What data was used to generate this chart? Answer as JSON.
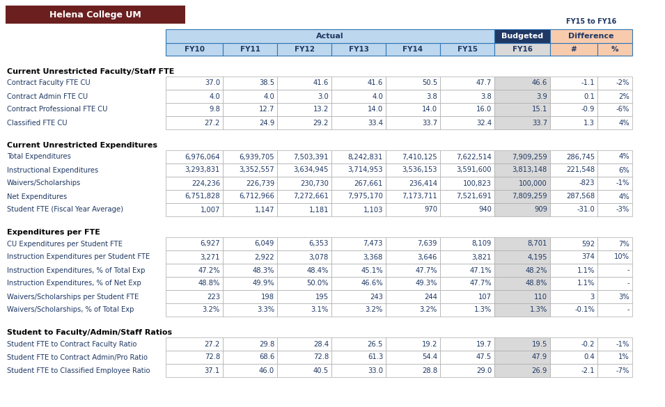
{
  "title": "Helena College UM",
  "title_bg": "#6B1F1F",
  "title_color": "#FFFFFF",
  "fy15to16_color": "#1F3864",
  "header_actual_bg": "#BDD7EE",
  "header_budgeted_bg": "#1F3864",
  "header_diff_bg": "#F8CBAD",
  "col_fy16_bg": "#D9D9D9",
  "data_text_color": "#1F3864",
  "border_color": "#2E75B6",
  "sections": [
    {
      "title": "Current Unrestricted Faculty/Staff FTE",
      "rows": [
        {
          "label": "Contract Faculty FTE CU",
          "values": [
            "37.0",
            "38.5",
            "41.6",
            "41.6",
            "50.5",
            "47.7",
            "46.6",
            "-1.1",
            "-2%"
          ]
        },
        {
          "label": "Contract Admin FTE CU",
          "values": [
            "4.0",
            "4.0",
            "3.0",
            "4.0",
            "3.8",
            "3.8",
            "3.9",
            "0.1",
            "2%"
          ]
        },
        {
          "label": "Contract Professional FTE CU",
          "values": [
            "9.8",
            "12.7",
            "13.2",
            "14.0",
            "14.0",
            "16.0",
            "15.1",
            "-0.9",
            "-6%"
          ]
        },
        {
          "label": "Classified FTE CU",
          "values": [
            "27.2",
            "24.9",
            "29.2",
            "33.4",
            "33.7",
            "32.4",
            "33.7",
            "1.3",
            "4%"
          ]
        }
      ]
    },
    {
      "title": "Current Unrestricted Expenditures",
      "rows": [
        {
          "label": "Total Expenditures",
          "values": [
            "6,976,064",
            "6,939,705",
            "7,503,391",
            "8,242,831",
            "7,410,125",
            "7,622,514",
            "7,909,259",
            "286,745",
            "4%"
          ]
        },
        {
          "label": "Instructional Expenditures",
          "values": [
            "3,293,831",
            "3,352,557",
            "3,634,945",
            "3,714,953",
            "3,536,153",
            "3,591,600",
            "3,813,148",
            "221,548",
            "6%"
          ]
        },
        {
          "label": "Waivers/Scholarships",
          "values": [
            "224,236",
            "226,739",
            "230,730",
            "267,661",
            "236,414",
            "100,823",
            "100,000",
            "-823",
            "-1%"
          ]
        },
        {
          "label": "Net Expenditures",
          "values": [
            "6,751,828",
            "6,712,966",
            "7,272,661",
            "7,975,170",
            "7,173,711",
            "7,521,691",
            "7,809,259",
            "287,568",
            "4%"
          ]
        },
        {
          "label": "Student FTE (Fiscal Year Average)",
          "values": [
            "1,007",
            "1,147",
            "1,181",
            "1,103",
            "970",
            "940",
            "909",
            "-31.0",
            "-3%"
          ]
        }
      ]
    },
    {
      "title": "Expenditures per FTE",
      "rows": [
        {
          "label": "CU Expenditures per Student FTE",
          "values": [
            "6,927",
            "6,049",
            "6,353",
            "7,473",
            "7,639",
            "8,109",
            "8,701",
            "592",
            "7%"
          ]
        },
        {
          "label": "Instruction Expenditures per Student FTE",
          "values": [
            "3,271",
            "2,922",
            "3,078",
            "3,368",
            "3,646",
            "3,821",
            "4,195",
            "374",
            "10%"
          ]
        },
        {
          "label": "Instruction Expenditures, % of Total Exp",
          "values": [
            "47.2%",
            "48.3%",
            "48.4%",
            "45.1%",
            "47.7%",
            "47.1%",
            "48.2%",
            "1.1%",
            "-"
          ]
        },
        {
          "label": "Instruction Expenditures, % of Net Exp",
          "values": [
            "48.8%",
            "49.9%",
            "50.0%",
            "46.6%",
            "49.3%",
            "47.7%",
            "48.8%",
            "1.1%",
            "-"
          ]
        },
        {
          "label": "Waivers/Scholarships per Student FTE",
          "values": [
            "223",
            "198",
            "195",
            "243",
            "244",
            "107",
            "110",
            "3",
            "3%"
          ]
        },
        {
          "label": "Waivers/Scholarships, % of Total Exp",
          "values": [
            "3.2%",
            "3.3%",
            "3.1%",
            "3.2%",
            "3.2%",
            "1.3%",
            "1.3%",
            "-0.1%",
            "-"
          ]
        }
      ]
    },
    {
      "title": "Student to Faculty/Admin/Staff Ratios",
      "rows": [
        {
          "label": "Student FTE to Contract Faculty Ratio",
          "values": [
            "27.2",
            "29.8",
            "28.4",
            "26.5",
            "19.2",
            "19.7",
            "19.5",
            "-0.2",
            "-1%"
          ]
        },
        {
          "label": "Student FTE to Contract Admin/Pro Ratio",
          "values": [
            "72.8",
            "68.6",
            "72.8",
            "61.3",
            "54.4",
            "47.5",
            "47.9",
            "0.4",
            "1%"
          ]
        },
        {
          "label": "Student FTE to Classified Employee Ratio",
          "values": [
            "37.1",
            "46.0",
            "40.5",
            "33.0",
            "28.8",
            "29.0",
            "26.9",
            "-2.1",
            "-7%"
          ]
        }
      ]
    }
  ],
  "col_headers_row2": [
    "FY10",
    "FY11",
    "FY12",
    "FY13",
    "FY14",
    "FY15",
    "FY16",
    "#",
    "%"
  ]
}
